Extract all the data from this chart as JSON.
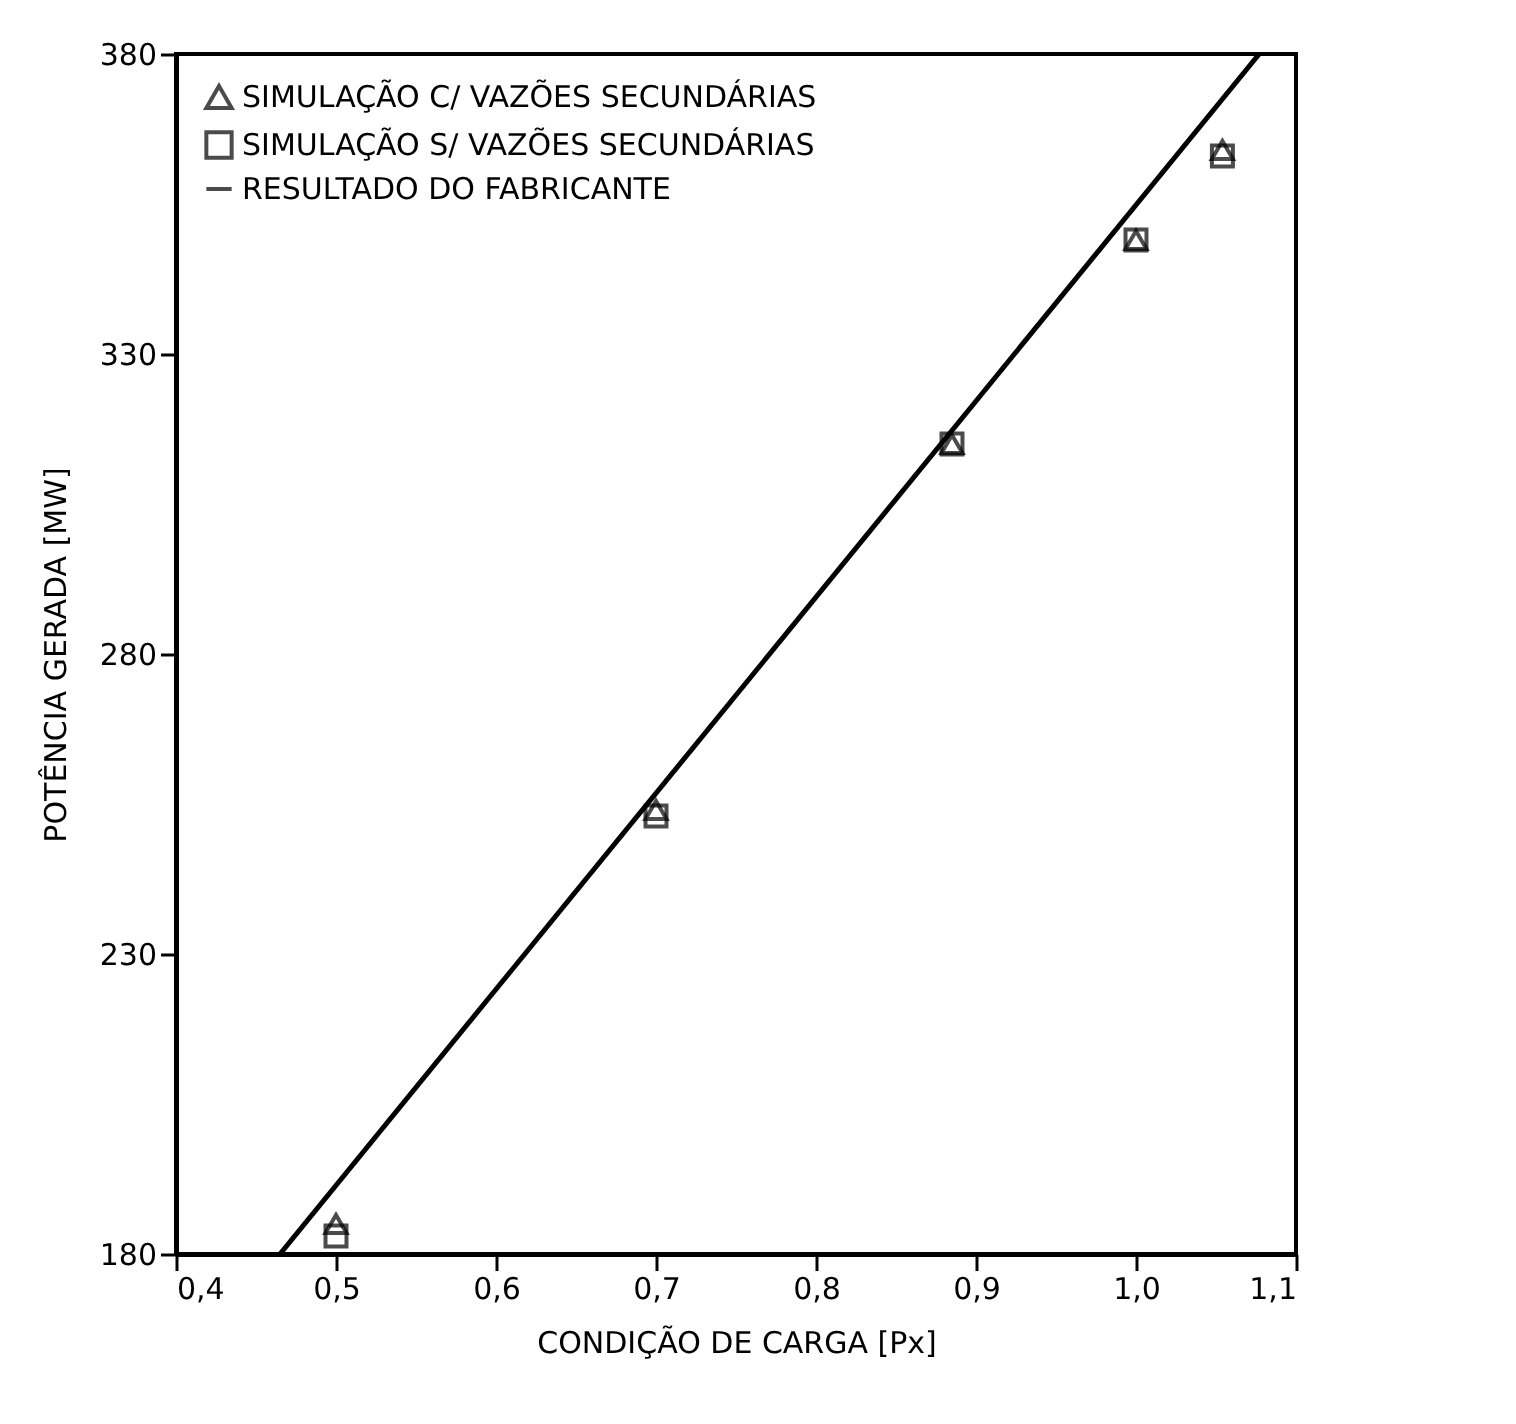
{
  "chart_data": {
    "type": "scatter",
    "xlabel": "CONDIÇÃO DE CARGA [Px]",
    "ylabel": "POTÊNCIA GERADA [MW]",
    "xlim": [
      0.4,
      1.1
    ],
    "xticks": [
      {
        "value": 0.4,
        "label": "0,4"
      },
      {
        "value": 0.5,
        "label": "0,5"
      },
      {
        "value": 0.6,
        "label": "0,6"
      },
      {
        "value": 0.7,
        "label": "0,7"
      },
      {
        "value": 0.8,
        "label": "0,8"
      },
      {
        "value": 0.9,
        "label": "0,9"
      },
      {
        "value": 1.0,
        "label": "1,0"
      },
      {
        "value": 1.1,
        "label": "1,1"
      }
    ],
    "ylim": [
      180,
      380
    ],
    "yticks": [
      180,
      230,
      280,
      330,
      380
    ],
    "grid": false,
    "legend": "top left",
    "x": [
      0.5,
      0.7,
      0.885,
      1.0,
      1.054
    ],
    "series": [
      {
        "name": "SIMULAÇÃO C/ VAZÕES SECUNDÁRIAS",
        "type": "scatter",
        "marker": "triangle",
        "color": "#000000",
        "values": [
          185,
          254,
          315,
          349,
          364
        ]
      },
      {
        "name": "SIMULAÇÃO S/ VAZÕES SECUNDÁRIAS",
        "type": "scatter",
        "marker": "square",
        "color": "#000000",
        "values": [
          183,
          253,
          315,
          349,
          363
        ]
      },
      {
        "name": "RESULTADO DO FABRICANTE",
        "type": "line",
        "marker": "none",
        "line_style": "solid",
        "color": "#000000",
        "x": [
          0.465,
          1.077
        ],
        "values": [
          180,
          380
        ]
      }
    ]
  }
}
